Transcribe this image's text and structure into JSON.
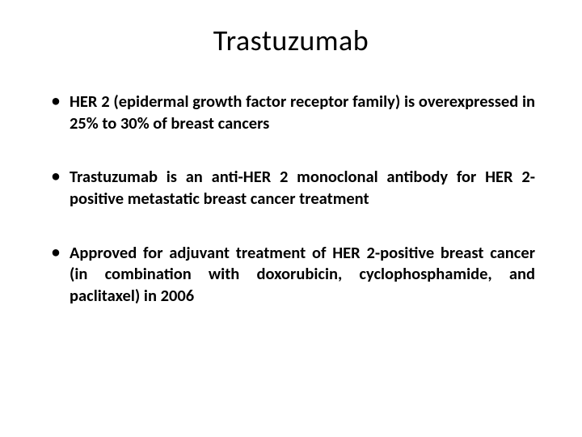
{
  "slide": {
    "title": "Trastuzumab",
    "title_fontsize": 36,
    "title_color": "#000000",
    "background_color": "#ffffff",
    "bullets": [
      {
        "text": "HER 2 (epidermal growth factor receptor family) is overexpressed in 25% to 30% of breast cancers"
      },
      {
        "text": "Trastuzumab is an anti-HER 2 monoclonal antibody for HER 2-positive metastatic breast cancer treatment"
      },
      {
        "text": "Approved for adjuvant treatment of HER 2-positive breast cancer (in combination with doxorubicin, cyclophosphamide, and paclitaxel) in 2006"
      }
    ],
    "bullet_fontsize": 20.5,
    "bullet_fontweight": 700,
    "bullet_color": "#000000"
  }
}
